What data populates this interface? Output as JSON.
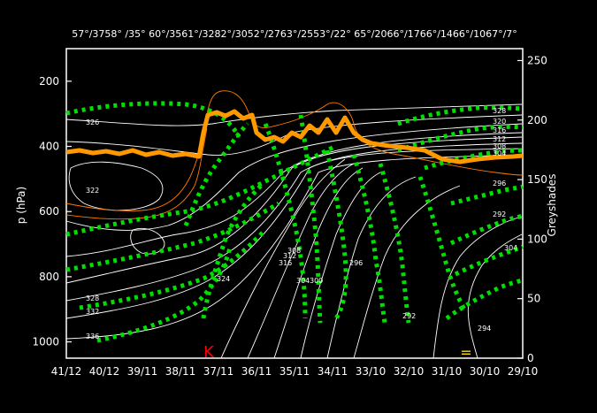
{
  "chart_data": {
    "type": "heatmap",
    "title": "",
    "top_labels": "57°/3758° /35° 60°/3561°/3282°/3052°/2763°/2553°/22° 65°/2066°/1766°/1466°/1067°/7°",
    "ylabel_left": "p (hPa)",
    "ylabel_right": "Greyshades",
    "y_ticks_left": [
      "200",
      "400",
      "600",
      "800",
      "1000"
    ],
    "y_ticks_right": [
      "0",
      "50",
      "100",
      "150",
      "200",
      "250"
    ],
    "x_ticks": [
      "41/12",
      "40/12",
      "39/11",
      "38/11",
      "37/11",
      "36/11",
      "35/11",
      "34/11",
      "33/10",
      "32/10",
      "31/10",
      "30/10",
      "29/10"
    ],
    "ylim_left": [
      1050,
      100
    ],
    "ylim_right": [
      0,
      260
    ],
    "grid": false,
    "marker_left": "K",
    "marker_right": "=",
    "isentrope_labels": [
      "326",
      "322",
      "328",
      "332",
      "336",
      "324",
      "316",
      "312",
      "308",
      "304",
      "300",
      "296",
      "292",
      "328",
      "320",
      "316",
      "312",
      "308",
      "304",
      "296",
      "292",
      "304",
      "294"
    ],
    "colors": {
      "background": "#000000",
      "isentropes": "#ffffff",
      "vertical_motion": "#00e000",
      "tropopause": "#ff9900",
      "humidity": "#ff7a00",
      "marker_left": "#ff0000",
      "marker_right": "#ffdd00"
    },
    "series": []
  }
}
